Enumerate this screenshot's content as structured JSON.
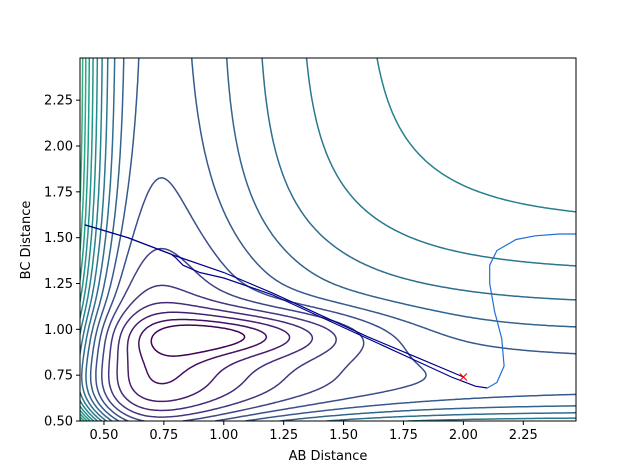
{
  "chart_data": {
    "type": "contour",
    "title": "",
    "xlabel": "AB Distance",
    "ylabel": "BC Distance",
    "xlim": [
      0.4,
      2.47
    ],
    "ylim": [
      0.5,
      2.48
    ],
    "xticks": [
      "0.50",
      "0.75",
      "1.00",
      "1.25",
      "1.50",
      "1.75",
      "2.00",
      "2.25"
    ],
    "yticks": [
      "0.50",
      "0.75",
      "1.00",
      "1.25",
      "1.50",
      "1.75",
      "2.00",
      "2.25"
    ],
    "xtick_values": [
      0.5,
      0.75,
      1.0,
      1.25,
      1.5,
      1.75,
      2.0,
      2.25
    ],
    "ytick_values": [
      0.5,
      0.75,
      1.0,
      1.25,
      1.5,
      1.75,
      2.0,
      2.25
    ],
    "colormap": "viridis",
    "contour_lines": 26,
    "surface": {
      "description_free": true,
      "minimum_xy": [
        1.1,
        1.0
      ],
      "well_depth_range": [
        0.0,
        1.0
      ]
    },
    "series": [
      {
        "color": "#00008b",
        "x": [
          0.42,
          0.6,
          0.8,
          1.0,
          1.2,
          1.4,
          1.6,
          1.8,
          2.0
        ],
        "y": [
          1.57,
          1.5,
          1.4,
          1.31,
          1.2,
          1.08,
          0.96,
          0.85,
          0.74
        ]
      },
      {
        "color": "#00008b",
        "x": [
          0.42,
          0.6,
          0.78,
          0.8,
          0.83,
          0.9,
          1.0,
          1.2,
          1.4,
          1.6,
          1.8,
          1.95,
          2.05,
          2.1
        ],
        "y": [
          1.57,
          1.5,
          1.41,
          1.39,
          1.35,
          1.31,
          1.28,
          1.19,
          1.07,
          0.95,
          0.83,
          0.74,
          0.69,
          0.68
        ]
      },
      {
        "color": "#1f6fd6",
        "x": [
          2.1,
          2.14,
          2.17,
          2.16,
          2.13,
          2.11,
          2.11,
          2.14,
          2.22,
          2.3,
          2.4,
          2.47
        ],
        "y": [
          0.68,
          0.71,
          0.8,
          0.95,
          1.1,
          1.25,
          1.35,
          1.43,
          1.49,
          1.51,
          1.52,
          1.52
        ]
      }
    ],
    "marker": {
      "symbol": "x",
      "color": "#ff0000",
      "x": 2.0,
      "y": 0.74
    }
  }
}
